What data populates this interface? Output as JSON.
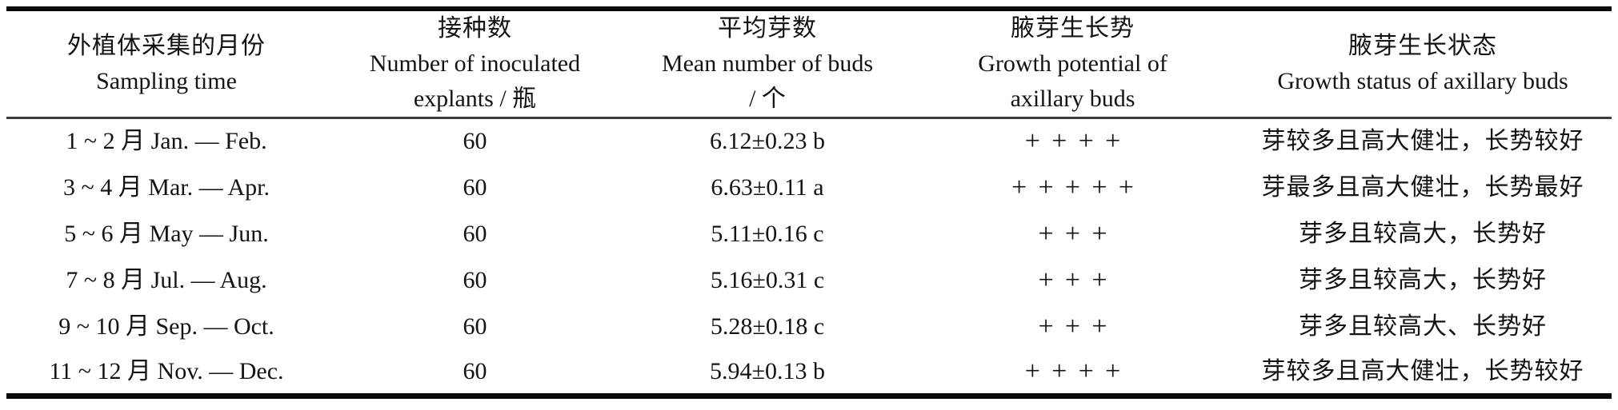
{
  "table": {
    "columns": [
      {
        "zh": "外植体采集的月份",
        "en_lines": [
          "Sampling time"
        ]
      },
      {
        "zh": "接种数",
        "en_lines": [
          "Number of inoculated",
          "explants / 瓶"
        ]
      },
      {
        "zh": "平均芽数",
        "en_lines": [
          "Mean number of buds",
          "/ 个"
        ]
      },
      {
        "zh": "腋芽生长势",
        "en_lines": [
          "Growth potential of",
          "axillary buds"
        ]
      },
      {
        "zh": "腋芽生长状态",
        "en_lines": [
          "Growth status of axillary buds"
        ]
      }
    ],
    "rows": [
      [
        "1 ~ 2 月 Jan. — Feb.",
        "60",
        "6.12±0.23 b",
        "++++",
        "芽较多且高大健壮，长势较好"
      ],
      [
        "3 ~ 4 月 Mar. — Apr.",
        "60",
        "6.63±0.11 a",
        "+++++",
        "芽最多且高大健壮，长势最好"
      ],
      [
        "5 ~ 6 月 May — Jun.",
        "60",
        "5.11±0.16 c",
        "+++",
        "芽多且较高大，长势好"
      ],
      [
        "7 ~ 8 月 Jul. — Aug.",
        "60",
        "5.16±0.31 c",
        "+++",
        "芽多且较高大，长势好"
      ],
      [
        "9 ~ 10 月 Sep. — Oct.",
        "60",
        "5.28±0.18 c",
        "+++",
        "芽多且较高大、长势好"
      ],
      [
        "11 ~ 12 月 Nov. — Dec.",
        "60",
        "5.94±0.13 b",
        "++++",
        "芽较多且高大健壮，长势较好"
      ]
    ],
    "line_colors": {
      "rule_heavy": "#0a0a0a",
      "rule_light": "#3d3d3d"
    }
  }
}
